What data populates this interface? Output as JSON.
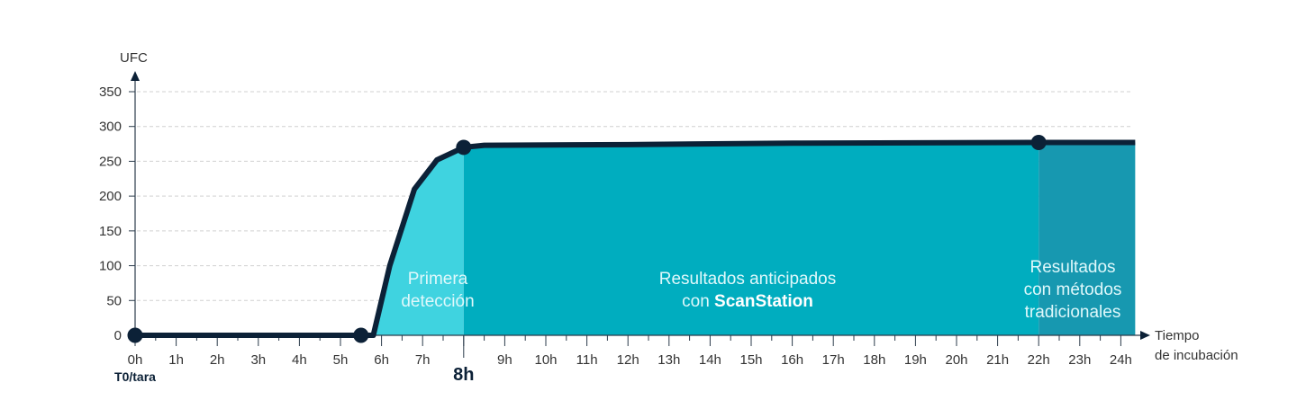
{
  "chart_data": {
    "type": "area",
    "ylabel": "UFC",
    "xlabel": "Tiempo de incubación",
    "xlabel_lines": [
      "Tiempo",
      "de incubación"
    ],
    "ylim": [
      0,
      350
    ],
    "xlim": [
      0,
      24
    ],
    "yticks": [
      0,
      50,
      100,
      150,
      200,
      250,
      300,
      350
    ],
    "xticks": [
      "0h",
      "1h",
      "2h",
      "3h",
      "4h",
      "5h",
      "6h",
      "7h",
      "8h",
      "9h",
      "10h",
      "11h",
      "12h",
      "13h",
      "14h",
      "15h",
      "16h",
      "17h",
      "18h",
      "19h",
      "20h",
      "21h",
      "22h",
      "23h",
      "24h"
    ],
    "x_sublabel": "T0/tara",
    "grid": true,
    "series": [
      {
        "name": "UFC",
        "x": [
          0,
          5.5,
          5.8,
          6.2,
          6.8,
          7.35,
          8,
          8.5,
          12,
          16,
          22,
          24.35
        ],
        "y": [
          0,
          0,
          0,
          100,
          210,
          252,
          270,
          273,
          274,
          276,
          277,
          277
        ]
      }
    ],
    "markers": [
      {
        "x": 0,
        "y": 0
      },
      {
        "x": 5.5,
        "y": 0
      },
      {
        "x": 8,
        "y": 270
      },
      {
        "x": 22,
        "y": 277
      }
    ],
    "regions": [
      {
        "from": 5.8,
        "to": 8,
        "label_lines": [
          "Primera",
          "detección"
        ],
        "color": "#3fd3e0"
      },
      {
        "from": 8,
        "to": 22,
        "label_lines": [
          "Resultados anticipados",
          "con "
        ],
        "label_bold": "ScanStation",
        "color": "#00adbf"
      },
      {
        "from": 22,
        "to": 24.35,
        "label_lines": [
          "Resultados",
          "con métodos",
          "tradicionales"
        ],
        "color": "#1798b0"
      }
    ],
    "highlight_tick": "8h",
    "colors": {
      "line": "#0c2137",
      "grid": "#d0d0d0",
      "axis": "#2b3b4b",
      "text": "#333333"
    }
  }
}
